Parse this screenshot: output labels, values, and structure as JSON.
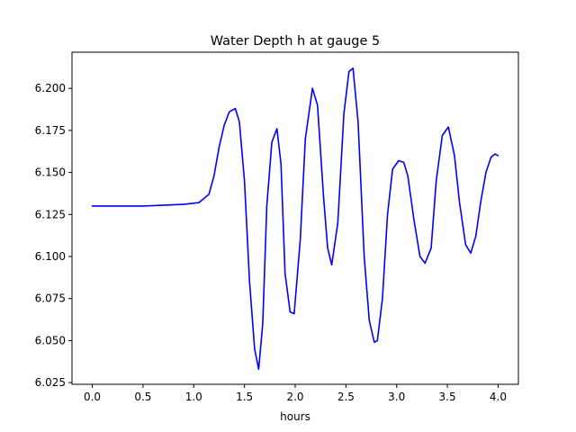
{
  "chart_data": {
    "type": "line",
    "title": "Water Depth h at gauge 5",
    "xlabel": "hours",
    "ylabel": "",
    "xlim": [
      -0.2,
      4.2
    ],
    "ylim": [
      6.024,
      6.2215
    ],
    "x_ticks": [
      0.0,
      0.5,
      1.0,
      1.5,
      2.0,
      2.5,
      3.0,
      3.5,
      4.0
    ],
    "x_tick_labels": [
      "0.0",
      "0.5",
      "1.0",
      "1.5",
      "2.0",
      "2.5",
      "3.0",
      "3.5",
      "4.0"
    ],
    "y_ticks": [
      6.025,
      6.05,
      6.075,
      6.1,
      6.125,
      6.15,
      6.175,
      6.2
    ],
    "y_tick_labels": [
      "6.025",
      "6.050",
      "6.075",
      "6.100",
      "6.125",
      "6.150",
      "6.175",
      "6.200"
    ],
    "grid": false,
    "legend": false,
    "series": [
      {
        "color": "#0000ff",
        "x": [
          0.0,
          0.5,
          0.9,
          1.05,
          1.15,
          1.2,
          1.25,
          1.3,
          1.35,
          1.41,
          1.45,
          1.5,
          1.55,
          1.6,
          1.64,
          1.68,
          1.72,
          1.77,
          1.82,
          1.86,
          1.9,
          1.95,
          1.99,
          2.05,
          2.1,
          2.17,
          2.22,
          2.28,
          2.32,
          2.36,
          2.42,
          2.48,
          2.53,
          2.57,
          2.62,
          2.68,
          2.73,
          2.78,
          2.81,
          2.86,
          2.91,
          2.96,
          3.02,
          3.07,
          3.11,
          3.17,
          3.23,
          3.28,
          3.34,
          3.39,
          3.45,
          3.51,
          3.57,
          3.62,
          3.68,
          3.73,
          3.78,
          3.83,
          3.88,
          3.93,
          3.97,
          4.0
        ],
        "y": [
          6.13,
          6.13,
          6.131,
          6.132,
          6.137,
          6.148,
          6.165,
          6.178,
          6.186,
          6.188,
          6.18,
          6.145,
          6.085,
          6.045,
          6.033,
          6.06,
          6.13,
          6.168,
          6.176,
          6.155,
          6.09,
          6.067,
          6.066,
          6.11,
          6.17,
          6.2,
          6.19,
          6.135,
          6.105,
          6.095,
          6.12,
          6.185,
          6.21,
          6.212,
          6.18,
          6.1,
          6.062,
          6.049,
          6.05,
          6.075,
          6.125,
          6.152,
          6.157,
          6.156,
          6.148,
          6.122,
          6.1,
          6.096,
          6.105,
          6.145,
          6.172,
          6.177,
          6.16,
          6.132,
          6.107,
          6.102,
          6.112,
          6.133,
          6.15,
          6.159,
          6.161,
          6.16
        ]
      }
    ]
  }
}
